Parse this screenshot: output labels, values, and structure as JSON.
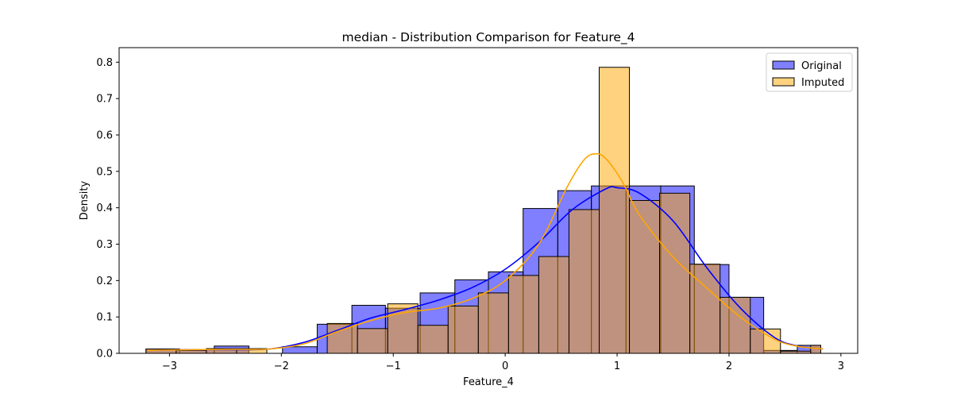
{
  "chart_data": {
    "type": "histogram",
    "title": "median - Distribution Comparison for Feature_4",
    "xlabel": "Feature_4",
    "ylabel": "Density",
    "xlim": [
      -3.45,
      3.15
    ],
    "ylim": [
      0,
      0.84
    ],
    "xticks": [
      -3,
      -2,
      -1,
      0,
      1,
      2,
      3
    ],
    "xtick_labels": [
      "−3",
      "−2",
      "−1",
      "0",
      "1",
      "2",
      "3"
    ],
    "yticks": [
      0.0,
      0.1,
      0.2,
      0.3,
      0.4,
      0.5,
      0.6,
      0.7,
      0.8
    ],
    "ytick_labels": [
      "0.0",
      "0.1",
      "0.2",
      "0.3",
      "0.4",
      "0.5",
      "0.6",
      "0.7",
      "0.8"
    ],
    "grid": false,
    "legend_position": "top-right",
    "series": [
      {
        "name": "Original",
        "color": "#0000ff",
        "fill_opacity": 0.5,
        "bins": [
          {
            "x0": -3.21,
            "x1": -2.91,
            "y": 0.012
          },
          {
            "x0": -2.91,
            "x1": -2.6,
            "y": 0.01
          },
          {
            "x0": -2.6,
            "x1": -2.29,
            "y": 0.02
          },
          {
            "x0": -2.29,
            "x1": -1.99,
            "y": 0.0
          },
          {
            "x0": -1.99,
            "x1": -1.68,
            "y": 0.018
          },
          {
            "x0": -1.68,
            "x1": -1.37,
            "y": 0.08
          },
          {
            "x0": -1.37,
            "x1": -1.07,
            "y": 0.132
          },
          {
            "x0": -1.07,
            "x1": -0.76,
            "y": 0.124
          },
          {
            "x0": -0.76,
            "x1": -0.45,
            "y": 0.166
          },
          {
            "x0": -0.45,
            "x1": -0.15,
            "y": 0.202
          },
          {
            "x0": -0.15,
            "x1": 0.16,
            "y": 0.224
          },
          {
            "x0": 0.16,
            "x1": 0.47,
            "y": 0.398
          },
          {
            "x0": 0.47,
            "x1": 0.77,
            "y": 0.447
          },
          {
            "x0": 0.77,
            "x1": 1.08,
            "y": 0.46
          },
          {
            "x0": 1.08,
            "x1": 1.39,
            "y": 0.46
          },
          {
            "x0": 1.39,
            "x1": 1.69,
            "y": 0.46
          },
          {
            "x0": 1.69,
            "x1": 2.0,
            "y": 0.244
          },
          {
            "x0": 2.0,
            "x1": 2.31,
            "y": 0.154
          },
          {
            "x0": 2.31,
            "x1": 2.61,
            "y": 0.008
          },
          {
            "x0": 2.61,
            "x1": 2.82,
            "y": 0.022
          }
        ],
        "kde": {
          "x": [
            -3.2,
            -2.8,
            -2.4,
            -2.1,
            -1.8,
            -1.5,
            -1.2,
            -0.9,
            -0.6,
            -0.3,
            0.0,
            0.3,
            0.6,
            0.9,
            1.0,
            1.2,
            1.5,
            1.8,
            2.1,
            2.4,
            2.6,
            2.84
          ],
          "y": [
            0.008,
            0.01,
            0.01,
            0.012,
            0.03,
            0.063,
            0.097,
            0.12,
            0.146,
            0.18,
            0.231,
            0.305,
            0.395,
            0.452,
            0.455,
            0.44,
            0.364,
            0.236,
            0.125,
            0.045,
            0.021,
            0.012
          ]
        }
      },
      {
        "name": "Imputed",
        "color": "#ffa500",
        "fill_opacity": 0.5,
        "bins": [
          {
            "x0": -3.21,
            "x1": -2.94,
            "y": 0.012
          },
          {
            "x0": -2.94,
            "x1": -2.67,
            "y": 0.008
          },
          {
            "x0": -2.67,
            "x1": -2.4,
            "y": 0.013
          },
          {
            "x0": -2.4,
            "x1": -2.13,
            "y": 0.013
          },
          {
            "x0": -2.13,
            "x1": -1.86,
            "y": 0.0
          },
          {
            "x0": -1.86,
            "x1": -1.59,
            "y": 0.0
          },
          {
            "x0": -1.59,
            "x1": -1.32,
            "y": 0.082
          },
          {
            "x0": -1.32,
            "x1": -1.05,
            "y": 0.068
          },
          {
            "x0": -1.05,
            "x1": -0.78,
            "y": 0.136
          },
          {
            "x0": -0.78,
            "x1": -0.51,
            "y": 0.077
          },
          {
            "x0": -0.51,
            "x1": -0.24,
            "y": 0.13
          },
          {
            "x0": -0.24,
            "x1": 0.03,
            "y": 0.166
          },
          {
            "x0": 0.03,
            "x1": 0.3,
            "y": 0.214
          },
          {
            "x0": 0.3,
            "x1": 0.57,
            "y": 0.266
          },
          {
            "x0": 0.57,
            "x1": 0.84,
            "y": 0.395
          },
          {
            "x0": 0.84,
            "x1": 1.11,
            "y": 0.786
          },
          {
            "x0": 1.11,
            "x1": 1.38,
            "y": 0.42
          },
          {
            "x0": 1.38,
            "x1": 1.65,
            "y": 0.44
          },
          {
            "x0": 1.65,
            "x1": 1.92,
            "y": 0.245
          },
          {
            "x0": 1.92,
            "x1": 2.19,
            "y": 0.154
          },
          {
            "x0": 2.19,
            "x1": 2.46,
            "y": 0.067
          },
          {
            "x0": 2.46,
            "x1": 2.73,
            "y": 0.006
          },
          {
            "x0": 2.73,
            "x1": 2.82,
            "y": 0.022
          }
        ],
        "kde": {
          "x": [
            -3.2,
            -2.8,
            -2.4,
            -2.1,
            -1.8,
            -1.5,
            -1.2,
            -0.9,
            -0.6,
            -0.3,
            0.0,
            0.3,
            0.55,
            0.7,
            0.8,
            0.9,
            1.05,
            1.2,
            1.5,
            1.8,
            2.1,
            2.4,
            2.6,
            2.84
          ],
          "y": [
            0.008,
            0.01,
            0.011,
            0.012,
            0.026,
            0.06,
            0.09,
            0.112,
            0.124,
            0.15,
            0.2,
            0.3,
            0.455,
            0.53,
            0.548,
            0.535,
            0.47,
            0.38,
            0.265,
            0.18,
            0.1,
            0.04,
            0.02,
            0.012
          ]
        }
      }
    ]
  }
}
